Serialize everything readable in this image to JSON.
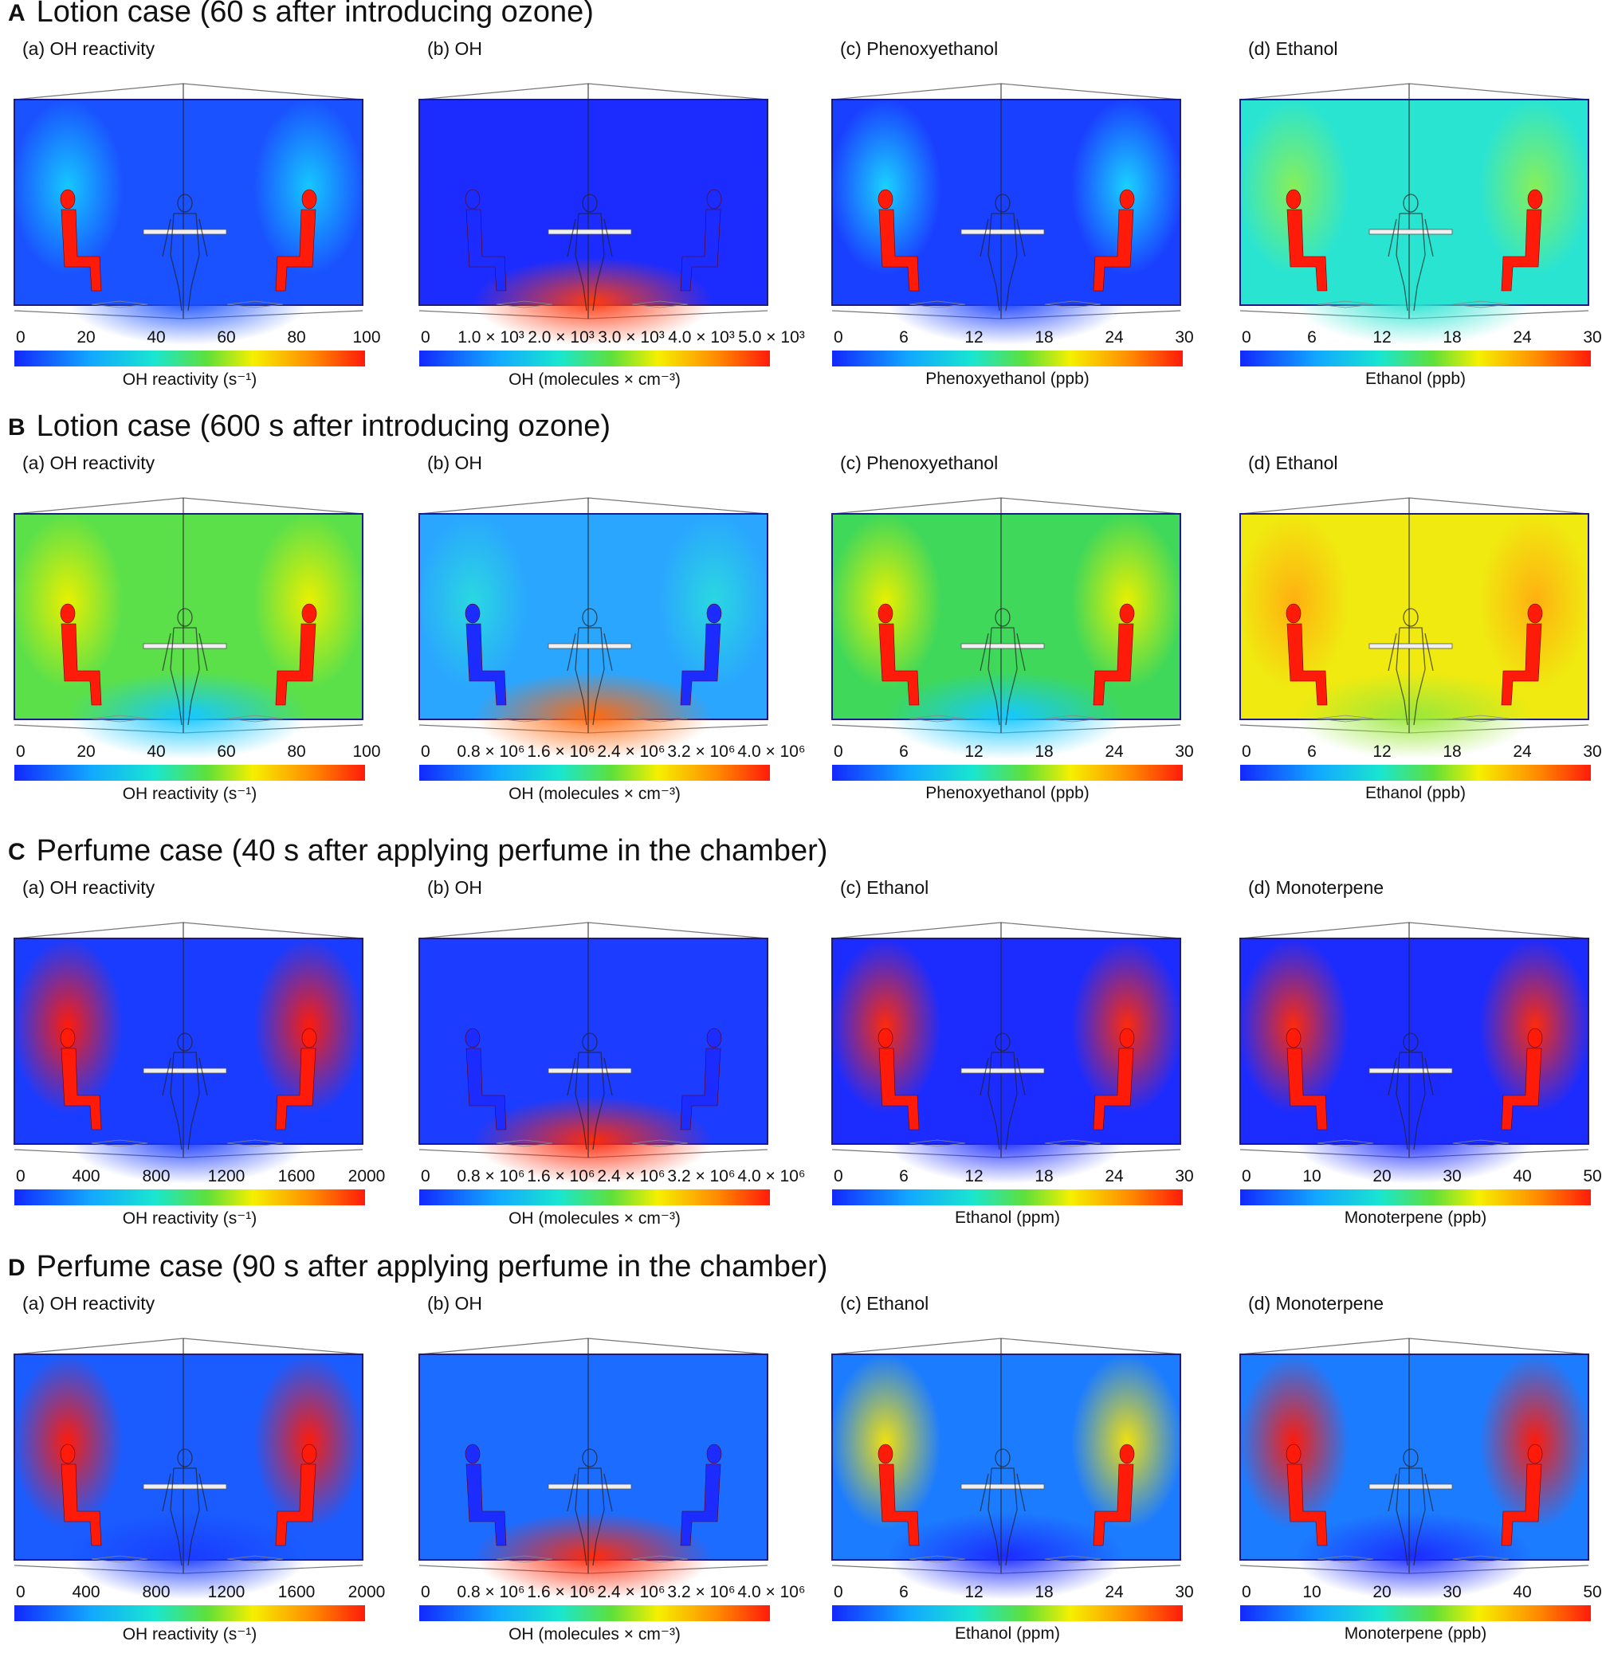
{
  "colors": {
    "low": "#1228ff",
    "mid_low": "#12a8ff",
    "mid": "#19e6d0",
    "mid_high": "#5fe03a",
    "high": "#f5f000",
    "higher": "#ff8a00",
    "max": "#ff1b0a"
  },
  "sections": [
    {
      "letter": "A",
      "title": "Lotion case (60 s after introducing ozone)",
      "panels": [
        {
          "title": "(a) OH reactivity",
          "icon": "chamber-contour-icon",
          "ticks": [
            "0",
            "20",
            "40",
            "60",
            "80",
            "100"
          ],
          "cbar_label": "OH reactivity (s⁻¹)",
          "background": "#1a52ff",
          "plume": "#16c8ff",
          "bottom_glow": "#1a52ff",
          "mannequin_color": "#ff1b0a"
        },
        {
          "title": "(b) OH",
          "icon": "chamber-contour-icon",
          "ticks": [
            "0",
            "1.0 × 10³",
            "2.0 × 10³",
            "3.0 × 10³",
            "4.0 × 10³",
            "5.0 × 10³"
          ],
          "cbar_label": "OH (molecules × cm⁻³)",
          "background": "#1c2cff",
          "plume": "#1c2cff",
          "bottom_glow": "#ff3a10",
          "mannequin_color": "#1c2cff"
        },
        {
          "title": "(c) Phenoxyethanol",
          "icon": "chamber-contour-icon",
          "ticks": [
            "0",
            "6",
            "12",
            "18",
            "24",
            "30"
          ],
          "cbar_label": "Phenoxyethanol (ppb)",
          "background": "#1a40ff",
          "plume": "#1ad2ff",
          "bottom_glow": "#1a40ff",
          "mannequin_color": "#ff1b0a"
        },
        {
          "title": "(d) Ethanol",
          "icon": "chamber-contour-icon",
          "ticks": [
            "0",
            "6",
            "12",
            "18",
            "24",
            "30"
          ],
          "cbar_label": "Ethanol (ppb)",
          "background": "#2ae4d2",
          "plume": "#86ef5a",
          "bottom_glow": "#2ae4d2",
          "mannequin_color": "#ff1b0a"
        }
      ]
    },
    {
      "letter": "B",
      "title": "Lotion case (600 s after introducing ozone)",
      "panels": [
        {
          "title": "(a) OH reactivity",
          "icon": "chamber-contour-icon",
          "ticks": [
            "0",
            "20",
            "40",
            "60",
            "80",
            "100"
          ],
          "cbar_label": "OH reactivity (s⁻¹)",
          "background": "#5be04a",
          "plume": "#e9f000",
          "bottom_glow": "#16c8ff",
          "mannequin_color": "#ff1b0a"
        },
        {
          "title": "(b) OH",
          "icon": "chamber-contour-icon",
          "ticks": [
            "0",
            "0.8 × 10⁶",
            "1.6 × 10⁶",
            "2.4 × 10⁶",
            "3.2 × 10⁶",
            "4.0 × 10⁶"
          ],
          "cbar_label": "OH (molecules × cm⁻³)",
          "background": "#2aa6ff",
          "plume": "#2ad8e0",
          "bottom_glow": "#ff6a10",
          "mannequin_color": "#1c2cff"
        },
        {
          "title": "(c) Phenoxyethanol",
          "icon": "chamber-contour-icon",
          "ticks": [
            "0",
            "6",
            "12",
            "18",
            "24",
            "30"
          ],
          "cbar_label": "Phenoxyethanol (ppb)",
          "background": "#3fd85a",
          "plume": "#e9f000",
          "bottom_glow": "#16c8ff",
          "mannequin_color": "#ff1b0a"
        },
        {
          "title": "(d) Ethanol",
          "icon": "chamber-contour-icon",
          "ticks": [
            "0",
            "6",
            "12",
            "18",
            "24",
            "30"
          ],
          "cbar_label": "Ethanol (ppb)",
          "background": "#f0ea10",
          "plume": "#ffb010",
          "bottom_glow": "#9be83a",
          "mannequin_color": "#ff1b0a"
        }
      ]
    },
    {
      "letter": "C",
      "title": "Perfume case (40 s after applying perfume in the chamber)",
      "panels": [
        {
          "title": "(a) OH reactivity",
          "icon": "chamber-contour-icon",
          "ticks": [
            "0",
            "400",
            "800",
            "1200",
            "1600",
            "2000"
          ],
          "cbar_label": "OH reactivity (s⁻¹)",
          "background": "#1a3cff",
          "plume": "#ff1b0a",
          "bottom_glow": "#1a3cff",
          "mannequin_color": "#ff1b0a"
        },
        {
          "title": "(b) OH",
          "icon": "chamber-contour-icon",
          "ticks": [
            "0",
            "0.8 × 10⁶",
            "1.6 × 10⁶",
            "2.4 × 10⁶",
            "3.2 × 10⁶",
            "4.0 × 10⁶"
          ],
          "cbar_label": "OH (molecules × cm⁻³)",
          "background": "#1c3cff",
          "plume": "#1c3cff",
          "bottom_glow": "#ff2a0a",
          "mannequin_color": "#1c2cff"
        },
        {
          "title": "(c) Ethanol",
          "icon": "chamber-contour-icon",
          "ticks": [
            "0",
            "6",
            "12",
            "18",
            "24",
            "30"
          ],
          "cbar_label": "Ethanol (ppm)",
          "background": "#1c2cff",
          "plume": "#ff2a0a",
          "bottom_glow": "#1c2cff",
          "mannequin_color": "#ff1b0a"
        },
        {
          "title": "(d) Monoterpene",
          "icon": "chamber-contour-icon",
          "ticks": [
            "0",
            "10",
            "20",
            "30",
            "40",
            "50"
          ],
          "cbar_label": "Monoterpene (ppb)",
          "background": "#1c2cff",
          "plume": "#ff2a0a",
          "bottom_glow": "#1c2cff",
          "mannequin_color": "#ff1b0a"
        }
      ]
    },
    {
      "letter": "D",
      "title": "Perfume case (90 s after applying perfume in the chamber)",
      "panels": [
        {
          "title": "(a) OH reactivity",
          "icon": "chamber-contour-icon",
          "ticks": [
            "0",
            "400",
            "800",
            "1200",
            "1600",
            "2000"
          ],
          "cbar_label": "OH reactivity (s⁻¹)",
          "background": "#1a5cff",
          "plume": "#ff1b0a",
          "bottom_glow": "#1a3cff",
          "mannequin_color": "#ff1b0a"
        },
        {
          "title": "(b) OH",
          "icon": "chamber-contour-icon",
          "ticks": [
            "0",
            "0.8 × 10⁶",
            "1.6 × 10⁶",
            "2.4 × 10⁶",
            "3.2 × 10⁶",
            "4.0 × 10⁶"
          ],
          "cbar_label": "OH (molecules × cm⁻³)",
          "background": "#1c6cff",
          "plume": "#1c6cff",
          "bottom_glow": "#ff2a0a",
          "mannequin_color": "#1c2cff"
        },
        {
          "title": "(c) Ethanol",
          "icon": "chamber-contour-icon",
          "ticks": [
            "0",
            "6",
            "12",
            "18",
            "24",
            "30"
          ],
          "cbar_label": "Ethanol (ppm)",
          "background": "#1c7cff",
          "plume": "#f0e010",
          "bottom_glow": "#1c2cff",
          "mannequin_color": "#ff1b0a"
        },
        {
          "title": "(d) Monoterpene",
          "icon": "chamber-contour-icon",
          "ticks": [
            "0",
            "10",
            "20",
            "30",
            "40",
            "50"
          ],
          "cbar_label": "Monoterpene (ppb)",
          "background": "#1c7cff",
          "plume": "#ff1b0a",
          "bottom_glow": "#1c2cff",
          "mannequin_color": "#ff1b0a"
        }
      ]
    }
  ]
}
